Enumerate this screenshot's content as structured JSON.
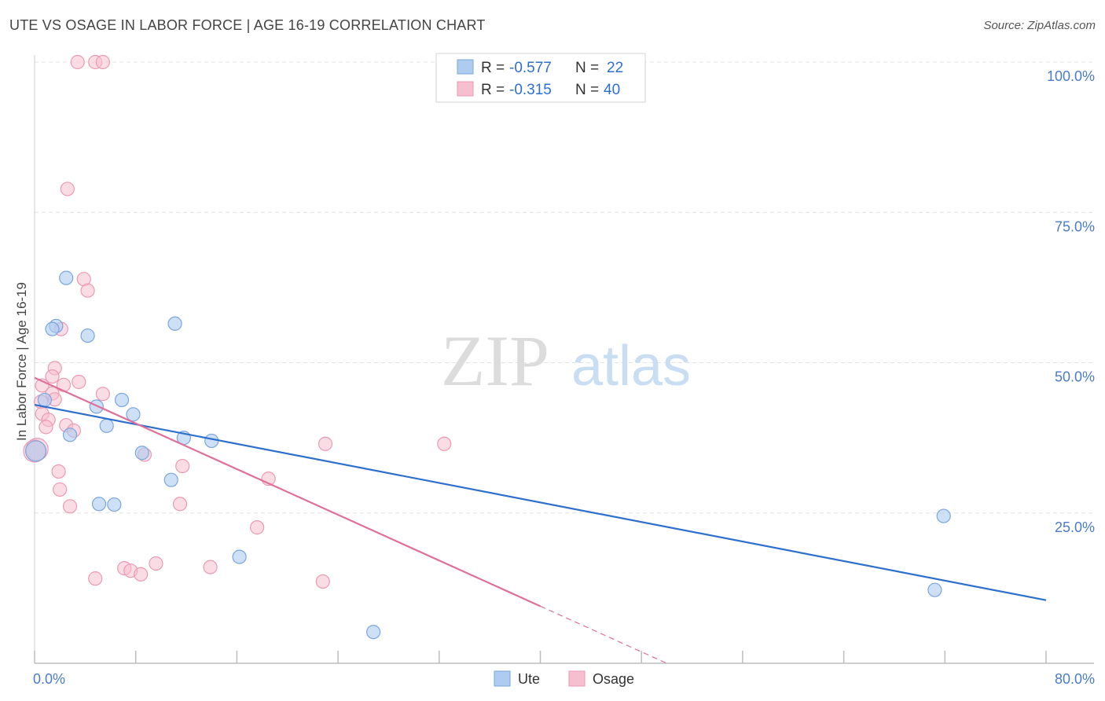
{
  "header": {
    "title": "UTE VS OSAGE IN LABOR FORCE | AGE 16-19 CORRELATION CHART",
    "source": "Source: ZipAtlas.com"
  },
  "watermark": {
    "zip": "ZIP",
    "atlas": "atlas"
  },
  "stats": {
    "ute": {
      "r_label": "R =",
      "r_value": "-0.577",
      "n_label": "N =",
      "n_value": "22"
    },
    "osage": {
      "r_label": "R =",
      "r_value": "-0.315",
      "n_label": "N =",
      "n_value": "40"
    }
  },
  "colors": {
    "ute_fill": "#aecbf0",
    "ute_stroke": "#7aa6dd",
    "ute_line": "#2d6fcf",
    "osage_fill": "#f6bfd0",
    "osage_stroke": "#ec9ab3",
    "osage_line": "#e0709a",
    "tick_label": "#4a7cc9",
    "grid": "#e3e3e3"
  },
  "chart_data": {
    "type": "scatter",
    "title": "UTE VS OSAGE IN LABOR FORCE | AGE 16-19 CORRELATION CHART",
    "xlabel": "",
    "ylabel": "In Labor Force | Age 16-19",
    "xlim": [
      0,
      80
    ],
    "ylim": [
      0,
      100
    ],
    "x_tick_labels": [
      "0.0%",
      "80.0%"
    ],
    "y_ticks": [
      25,
      50,
      75,
      100
    ],
    "y_tick_labels": [
      "25.0%",
      "50.0%",
      "75.0%",
      "100.0%"
    ],
    "grid": true,
    "legend_position": "bottom",
    "series": [
      {
        "name": "Ute",
        "color": "#aecbf0",
        "points": [
          [
            2.5,
            64.1
          ],
          [
            1.7,
            56.1
          ],
          [
            1.4,
            55.6
          ],
          [
            4.2,
            54.5
          ],
          [
            11.1,
            56.5
          ],
          [
            0.8,
            43.8
          ],
          [
            4.9,
            42.7
          ],
          [
            6.9,
            43.8
          ],
          [
            7.8,
            41.4
          ],
          [
            5.7,
            39.5
          ],
          [
            2.8,
            38.0
          ],
          [
            11.8,
            37.5
          ],
          [
            14.0,
            37.0
          ],
          [
            8.5,
            35.0
          ],
          [
            10.8,
            30.5
          ],
          [
            5.1,
            26.5
          ],
          [
            6.3,
            26.4
          ],
          [
            16.2,
            17.7
          ],
          [
            26.8,
            5.2
          ],
          [
            0.1,
            35.3
          ],
          [
            71.9,
            24.5
          ],
          [
            71.2,
            12.2
          ]
        ],
        "trend": [
          [
            0,
            43.0
          ],
          [
            80,
            10.5
          ]
        ]
      },
      {
        "name": "Osage",
        "color": "#f6bfd0",
        "points": [
          [
            3.4,
            100.0
          ],
          [
            4.8,
            100.0
          ],
          [
            5.4,
            100.0
          ],
          [
            2.6,
            78.9
          ],
          [
            3.9,
            63.9
          ],
          [
            4.2,
            62.0
          ],
          [
            2.1,
            55.6
          ],
          [
            1.6,
            49.1
          ],
          [
            1.4,
            47.7
          ],
          [
            3.5,
            46.8
          ],
          [
            0.6,
            46.2
          ],
          [
            2.3,
            46.3
          ],
          [
            1.4,
            44.9
          ],
          [
            5.4,
            44.8
          ],
          [
            1.6,
            43.9
          ],
          [
            0.5,
            43.5
          ],
          [
            0.6,
            41.5
          ],
          [
            1.1,
            40.5
          ],
          [
            2.5,
            39.6
          ],
          [
            0.9,
            39.3
          ],
          [
            3.1,
            38.7
          ],
          [
            8.7,
            34.7
          ],
          [
            11.7,
            32.8
          ],
          [
            1.9,
            31.9
          ],
          [
            18.5,
            30.7
          ],
          [
            2.0,
            28.9
          ],
          [
            11.5,
            26.5
          ],
          [
            2.8,
            26.1
          ],
          [
            17.6,
            22.6
          ],
          [
            9.6,
            16.6
          ],
          [
            7.1,
            15.8
          ],
          [
            13.9,
            16.0
          ],
          [
            7.6,
            15.4
          ],
          [
            8.4,
            14.8
          ],
          [
            23.0,
            36.5
          ],
          [
            32.4,
            36.5
          ],
          [
            4.8,
            14.1
          ],
          [
            22.8,
            13.6
          ],
          [
            0.2,
            35.6
          ],
          [
            0.0,
            35.3
          ]
        ],
        "trend": [
          [
            0,
            47.5
          ],
          [
            40,
            9.5
          ]
        ],
        "trend_dashed": [
          [
            40,
            9.5
          ],
          [
            50,
            0.0
          ]
        ]
      }
    ]
  }
}
